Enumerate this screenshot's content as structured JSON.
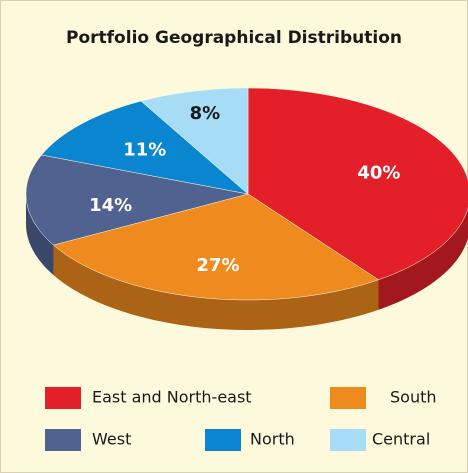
{
  "chart_data": {
    "type": "pie",
    "title": "Portfolio Geographical Distribution",
    "categories": [
      "East and North-east",
      "South",
      "West",
      "North",
      "Central"
    ],
    "values": [
      40,
      27,
      14,
      11,
      8
    ],
    "value_labels": [
      "40%",
      "27%",
      "14%",
      "11%",
      "8%"
    ],
    "colors": [
      "#e3202a",
      "#ef8a1f",
      "#4f6290",
      "#0a86d0",
      "#a7dcf6"
    ]
  }
}
